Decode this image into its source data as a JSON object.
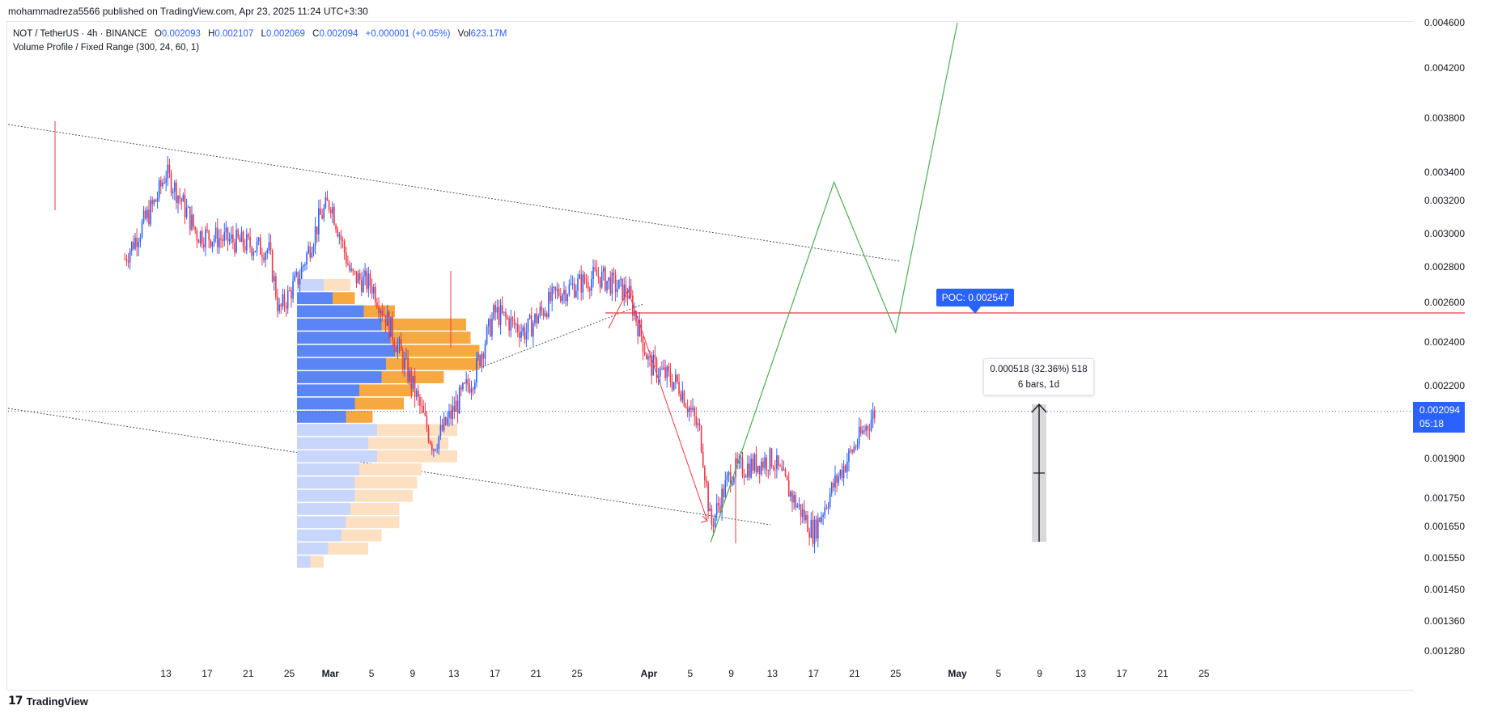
{
  "publish_line": "mohammadreza5566 published on TradingView.com, Apr 23, 2025 11:24 UTC+3:30",
  "legend": {
    "symbol": "NOT / TetherUS · 4h · BINANCE",
    "o_label": "O",
    "o": "0.002093",
    "h_label": "H",
    "h": "0.002107",
    "l_label": "L",
    "l": "0.002069",
    "c_label": "C",
    "c": "0.002094",
    "change": "+0.000001 (+0.05%)",
    "vol_label": "Vol",
    "vol": "623.17M",
    "indicator": "Volume Profile / Fixed Range (300, 24, 60, 1)"
  },
  "price_tag": {
    "price": "0.002094",
    "countdown": "05:18"
  },
  "poc_label": "POC: 0.002547",
  "measure": {
    "line1": "0.000518 (32.36%) 518",
    "line2": "6 bars, 1d"
  },
  "footer": {
    "logo_mark": "17",
    "brand": "TradingView"
  },
  "colors": {
    "up": "#2962ff",
    "down": "#f23645",
    "accent": "#2962ff",
    "poc_line": "#f23645",
    "projection": "#4caf50",
    "vp_up": "#5b84f5",
    "vp_down": "#f7a941"
  },
  "chart_data": {
    "type": "candlestick",
    "symbol": "NOT/USDT",
    "timeframe": "4h",
    "y_ticks": [
      "0.004600",
      "0.004200",
      "0.003800",
      "0.003400",
      "0.003200",
      "0.003000",
      "0.002800",
      "0.002600",
      "0.002400",
      "0.002200",
      "0.001900",
      "0.001750",
      "0.001650",
      "0.001550",
      "0.001450",
      "0.001360",
      "0.001280"
    ],
    "x_ticks": [
      "13",
      "17",
      "21",
      "25",
      "Mar",
      "5",
      "9",
      "13",
      "17",
      "21",
      "25",
      "Apr",
      "5",
      "9",
      "13",
      "17",
      "21",
      "25",
      "May",
      "5",
      "9",
      "13",
      "17",
      "21",
      "25"
    ],
    "price_path": [
      [
        "Feb 9",
        0.00285
      ],
      [
        "Feb 12",
        0.0032
      ],
      [
        "Feb 13",
        0.0034
      ],
      [
        "Feb 16",
        0.003
      ],
      [
        "Feb 20",
        0.00295
      ],
      [
        "Feb 23",
        0.0029
      ],
      [
        "Feb 24",
        0.00255
      ],
      [
        "Feb 26",
        0.00275
      ],
      [
        "Feb 28",
        0.0031
      ],
      [
        "Mar 1",
        0.0032
      ],
      [
        "Mar 3",
        0.00275
      ],
      [
        "Mar 5",
        0.0027
      ],
      [
        "Mar 9",
        0.0022
      ],
      [
        "Mar 11",
        0.00195
      ],
      [
        "Mar 13",
        0.0021
      ],
      [
        "Mar 15",
        0.00225
      ],
      [
        "Mar 17",
        0.00255
      ],
      [
        "Mar 20",
        0.00245
      ],
      [
        "Mar 23",
        0.00265
      ],
      [
        "Mar 27",
        0.00275
      ],
      [
        "Mar 30",
        0.00265
      ],
      [
        "Apr 1",
        0.0023
      ],
      [
        "Apr 4",
        0.0022
      ],
      [
        "Apr 6",
        0.002
      ],
      [
        "Apr 7",
        0.00165
      ],
      [
        "Apr 9",
        0.00185
      ],
      [
        "Apr 13",
        0.0019
      ],
      [
        "Apr 15",
        0.00175
      ],
      [
        "Apr 17",
        0.00163
      ],
      [
        "Apr 19",
        0.0018
      ],
      [
        "Apr 21",
        0.00195
      ],
      [
        "Apr 23",
        0.002094
      ]
    ],
    "last_price": 0.002094,
    "poc": 0.002547,
    "projection_path": [
      [
        "Apr 7",
        0.0016
      ],
      [
        "Apr 19",
        0.00333
      ],
      [
        "Apr 25",
        0.00245
      ],
      [
        "May 1",
        0.0046
      ]
    ],
    "measurement": {
      "price_change": 0.000518,
      "percent": 32.36,
      "bars": 6
    },
    "volume_profile_rows": [
      {
        "up": 0.3,
        "down": 0.3
      },
      {
        "up": 0.4,
        "down": 0.25
      },
      {
        "up": 0.75,
        "down": 0.35
      },
      {
        "up": 0.95,
        "down": 0.95
      },
      {
        "up": 1.05,
        "down": 0.9
      },
      {
        "up": 1.1,
        "down": 0.95
      },
      {
        "up": 1.0,
        "down": 1.05
      },
      {
        "up": 0.95,
        "down": 0.7
      },
      {
        "up": 0.7,
        "down": 0.6
      },
      {
        "up": 0.65,
        "down": 0.55
      },
      {
        "up": 0.55,
        "down": 0.3
      },
      {
        "up": 0.9,
        "down": 0.9
      },
      {
        "up": 0.8,
        "down": 0.9
      },
      {
        "up": 0.9,
        "down": 0.9
      },
      {
        "up": 0.7,
        "down": 0.7
      },
      {
        "up": 0.65,
        "down": 0.7
      },
      {
        "up": 0.65,
        "down": 0.65
      },
      {
        "up": 0.6,
        "down": 0.55
      },
      {
        "up": 0.55,
        "down": 0.6
      },
      {
        "up": 0.5,
        "down": 0.45
      },
      {
        "up": 0.35,
        "down": 0.45
      },
      {
        "up": 0.15,
        "down": 0.15
      }
    ]
  }
}
